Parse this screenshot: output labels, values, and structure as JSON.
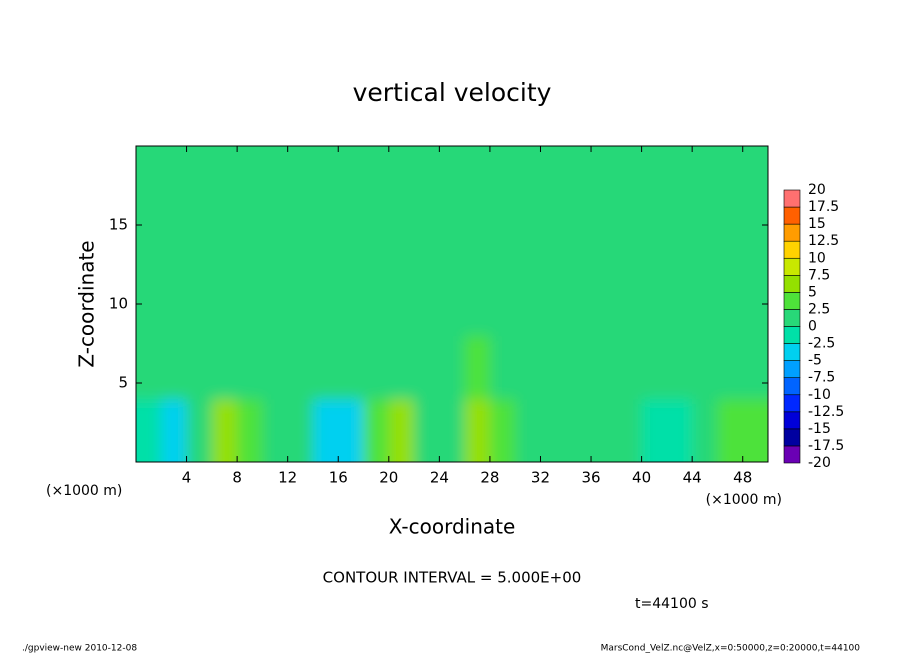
{
  "chart_data": {
    "type": "heatmap",
    "title": "vertical velocity",
    "x_label": "X-coordinate",
    "y_label": "Z-coordinate",
    "x_unit": "(×1000 m)",
    "x_unit_right": "(×1000 m)",
    "x": [
      1,
      3,
      5,
      7,
      9,
      11,
      13,
      15,
      17,
      19,
      21,
      23,
      25,
      27,
      29,
      31,
      33,
      35,
      37,
      39,
      41,
      43,
      45,
      47,
      49
    ],
    "y": [
      2,
      6,
      10,
      14,
      18
    ],
    "z": [
      [
        -2,
        -3,
        1,
        7,
        3,
        1,
        0,
        -4,
        -3,
        3,
        6,
        1,
        1,
        7,
        3,
        1,
        2,
        1,
        1,
        0,
        -1,
        -2,
        1,
        3,
        3
      ],
      [
        0,
        1,
        1,
        2,
        1,
        2,
        1,
        0,
        1,
        2,
        1,
        1,
        1,
        3,
        2,
        1,
        1,
        1,
        1,
        1,
        1,
        1,
        1,
        1,
        1
      ],
      [
        1,
        1,
        0,
        1,
        1,
        1,
        1,
        2,
        1,
        1,
        1,
        0,
        1,
        1,
        1,
        1,
        1,
        0,
        1,
        1,
        1,
        1,
        1,
        0,
        1
      ],
      [
        1,
        1,
        1,
        1,
        0,
        1,
        1,
        1,
        1,
        1,
        2,
        1,
        1,
        1,
        0,
        1,
        1,
        1,
        1,
        1,
        0,
        1,
        1,
        1,
        1
      ],
      [
        1,
        0,
        1,
        1,
        1,
        1,
        1,
        1,
        0,
        1,
        1,
        1,
        1,
        1,
        1,
        2,
        1,
        1,
        1,
        1,
        1,
        1,
        0,
        1,
        1
      ]
    ],
    "xlim": [
      0,
      50
    ],
    "ylim": [
      0,
      20
    ],
    "xticks": [
      4,
      8,
      12,
      16,
      20,
      24,
      28,
      32,
      36,
      40,
      44,
      48
    ],
    "yticks": [
      5,
      10,
      15
    ],
    "colorbar": {
      "levels": [
        -20,
        -17.5,
        -15,
        -12.5,
        -10,
        -7.5,
        -5,
        -2.5,
        0,
        2.5,
        5,
        7.5,
        10,
        12.5,
        15,
        17.5,
        20
      ],
      "colors": [
        "#6a00b4",
        "#0000a0",
        "#0000d8",
        "#0028ff",
        "#0064ff",
        "#00a0ff",
        "#00d0f0",
        "#00e0a8",
        "#28d878",
        "#4ee23a",
        "#94e000",
        "#c8e800",
        "#ffd200",
        "#ff9c00",
        "#ff6000",
        "#ff7070"
      ]
    },
    "contour_interval": "CONTOUR INTERVAL = 5.000E+00",
    "time_label": "t=44100 s",
    "footer_left": "./gpview-new  2010-12-08",
    "footer_right": "MarsCond_VelZ.nc@VelZ,x=0:50000,z=0:20000,t=44100"
  }
}
